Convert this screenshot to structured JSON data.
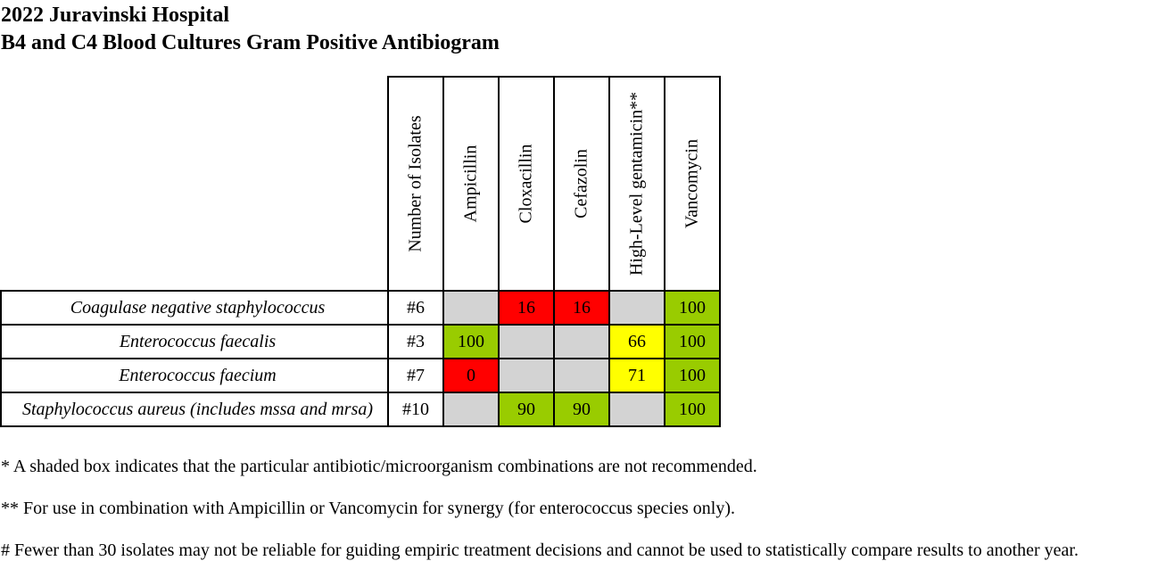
{
  "title_line1": "2022 Juravinski Hospital",
  "title_line2": "B4 and C4 Blood Cultures Gram Positive Antibiogram",
  "columns": [
    "Number of Isolates",
    "Ampicillin",
    "Cloxacillin",
    "Cefazolin",
    "High-Level gentamicin**",
    "Vancomycin"
  ],
  "rows": [
    {
      "organism": "Coagulase negative staphylococcus",
      "isolates": "#6",
      "cells": [
        {
          "value": "",
          "status": "grey"
        },
        {
          "value": "16",
          "status": "red"
        },
        {
          "value": "16",
          "status": "red"
        },
        {
          "value": "",
          "status": "grey"
        },
        {
          "value": "100",
          "status": "green"
        }
      ]
    },
    {
      "organism": "Enterococcus faecalis",
      "isolates": "#3",
      "cells": [
        {
          "value": "100",
          "status": "green"
        },
        {
          "value": "",
          "status": "grey"
        },
        {
          "value": "",
          "status": "grey"
        },
        {
          "value": "66",
          "status": "yellow"
        },
        {
          "value": "100",
          "status": "green"
        }
      ]
    },
    {
      "organism": "Enterococcus faecium",
      "isolates": "#7",
      "cells": [
        {
          "value": "0",
          "status": "red"
        },
        {
          "value": "",
          "status": "grey"
        },
        {
          "value": "",
          "status": "grey"
        },
        {
          "value": "71",
          "status": "yellow"
        },
        {
          "value": "100",
          "status": "green"
        }
      ]
    },
    {
      "organism": "Staphylococcus aureus (includes mssa and mrsa)",
      "isolates": "#10",
      "cells": [
        {
          "value": "",
          "status": "grey"
        },
        {
          "value": "90",
          "status": "green"
        },
        {
          "value": "90",
          "status": "green"
        },
        {
          "value": "",
          "status": "grey"
        },
        {
          "value": "100",
          "status": "green"
        }
      ]
    }
  ],
  "notes": [
    "* A shaded box indicates that the particular antibiotic/microorganism combinations are not recommended.",
    "** For use in combination with Ampicillin or Vancomycin for synergy (for enterococcus species only).",
    "# Fewer than 30 isolates may not be reliable for guiding empiric treatment decisions and cannot be used to statistically compare results to another year."
  ],
  "colors": {
    "grey": "#d3d3d3",
    "red": "#ff0000",
    "green": "#99cc00",
    "yellow": "#ffff00"
  }
}
